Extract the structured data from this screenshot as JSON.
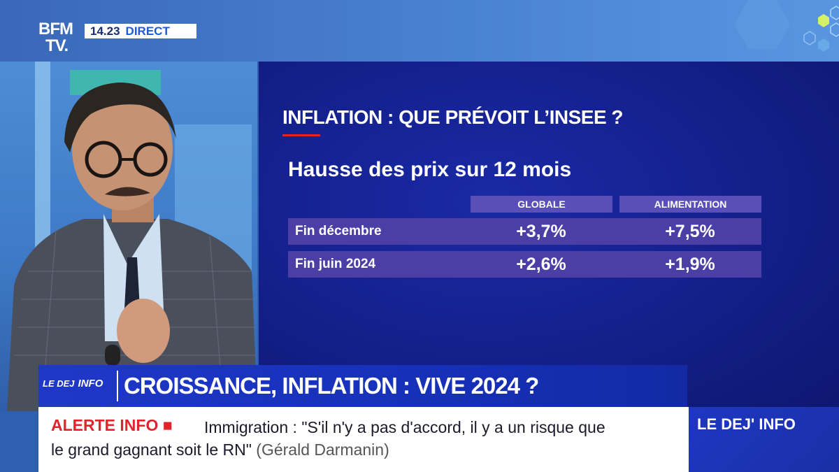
{
  "channel": {
    "logo_line1": "BFM",
    "logo_line2": "TV.",
    "time": "14.23",
    "live_label": "DIRECT"
  },
  "graphic": {
    "title": "INFLATION : QUE PRÉVOIT L’INSEE ?",
    "subtitle": "Hausse des prix sur 12 mois",
    "columns": [
      "GLOBALE",
      "ALIMENTATION"
    ],
    "rows": [
      {
        "label": "Fin décembre",
        "globale": "+3,7%",
        "alimentation": "+7,5%"
      },
      {
        "label": "Fin juin 2024",
        "globale": "+2,6%",
        "alimentation": "+1,9%"
      }
    ],
    "accent_color": "#e3232b"
  },
  "show": {
    "logo_line1": "LE DEJ",
    "logo_line2": "INFO",
    "headline": "CROISSANCE, INFLATION : VIVE 2024 ?"
  },
  "ticker": {
    "label": "ALERTE INFO",
    "text_line1": "Immigration : \"S'il n'y a pas d'accord, il y a un risque que",
    "text_line2": "le grand gagnant soit le RN\"",
    "author": "(Gérald Darmanin)"
  },
  "corner": {
    "label": "LE DEJ' INFO"
  }
}
